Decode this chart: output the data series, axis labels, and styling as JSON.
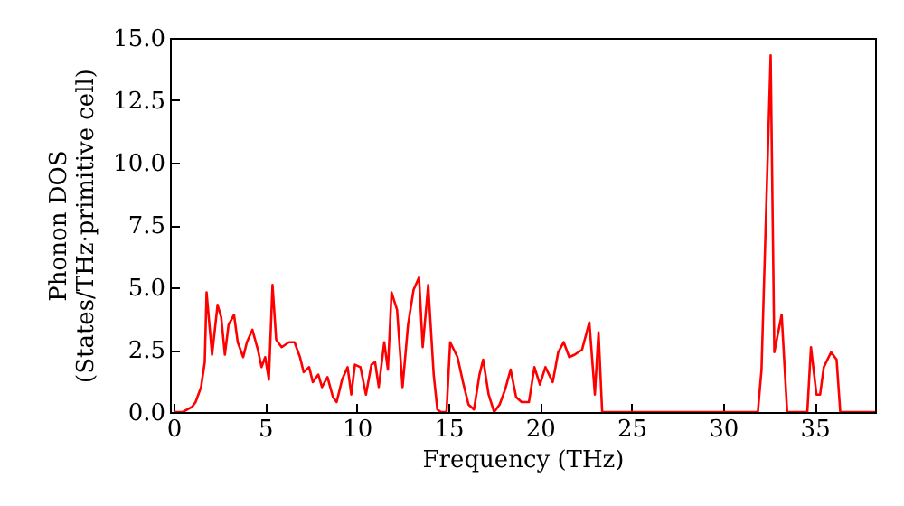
{
  "chart_data": {
    "type": "line",
    "xlabel": "Frequency (THz)",
    "ylabel": [
      "Phonon DOS",
      "(States/THz·primitive cell)"
    ],
    "xlim": [
      -0.2,
      38.3
    ],
    "ylim": [
      0,
      15
    ],
    "xticks": [
      0,
      5,
      10,
      15,
      20,
      25,
      30,
      35
    ],
    "yticks": [
      {
        "value": 0,
        "label": "0.0"
      },
      {
        "value": 2.5,
        "label": "2.5"
      },
      {
        "value": 5,
        "label": "5.0"
      },
      {
        "value": 7.5,
        "label": "7.5"
      },
      {
        "value": 10,
        "label": "10.0"
      },
      {
        "value": 12.5,
        "label": "12.5"
      },
      {
        "value": 15,
        "label": "15.0"
      }
    ],
    "grid": false,
    "line_style": "solid",
    "series": [
      {
        "color": "#ff0000",
        "x": [
          0,
          0.5,
          1.0,
          1.2,
          1.5,
          1.7,
          1.8,
          2.1,
          2.4,
          2.6,
          2.8,
          3.0,
          3.3,
          3.5,
          3.8,
          4.0,
          4.3,
          4.6,
          4.8,
          5.0,
          5.2,
          5.4,
          5.6,
          5.9,
          6.3,
          6.6,
          6.9,
          7.1,
          7.4,
          7.6,
          7.9,
          8.1,
          8.4,
          8.7,
          8.9,
          9.2,
          9.5,
          9.7,
          9.9,
          10.2,
          10.5,
          10.8,
          11.0,
          11.2,
          11.5,
          11.7,
          11.9,
          12.2,
          12.5,
          12.8,
          13.1,
          13.4,
          13.6,
          13.9,
          14.2,
          14.4,
          14.6,
          14.9,
          15.1,
          15.5,
          15.8,
          16.1,
          16.4,
          16.7,
          16.9,
          17.2,
          17.5,
          17.8,
          18.1,
          18.4,
          18.7,
          19.0,
          19.4,
          19.7,
          20.0,
          20.3,
          20.7,
          21.0,
          21.3,
          21.6,
          21.9,
          22.3,
          22.7,
          23.0,
          23.2,
          23.4,
          31.9,
          32.1,
          32.6,
          32.8,
          33.2,
          33.5,
          34.6,
          34.8,
          35.1,
          35.3,
          35.5,
          35.9,
          36.2,
          36.4,
          38.3
        ],
        "values": [
          0,
          0,
          0.2,
          0.4,
          1.0,
          2.0,
          4.8,
          2.3,
          4.3,
          3.8,
          2.3,
          3.5,
          3.9,
          2.8,
          2.2,
          2.8,
          3.3,
          2.5,
          1.8,
          2.2,
          1.3,
          5.1,
          2.9,
          2.6,
          2.8,
          2.8,
          2.2,
          1.6,
          1.8,
          1.2,
          1.5,
          1.0,
          1.4,
          0.6,
          0.4,
          1.3,
          1.8,
          0.7,
          1.9,
          1.8,
          0.7,
          1.9,
          2.0,
          1.0,
          2.8,
          1.7,
          4.8,
          4.1,
          1.0,
          3.5,
          4.9,
          5.4,
          2.6,
          5.1,
          1.5,
          0.1,
          0,
          0,
          2.8,
          2.2,
          1.2,
          0.3,
          0.1,
          1.5,
          2.1,
          0.7,
          0,
          0.3,
          0.9,
          1.7,
          0.6,
          0.4,
          0.4,
          1.8,
          1.1,
          1.8,
          1.2,
          2.4,
          2.8,
          2.2,
          2.3,
          2.5,
          3.6,
          0.7,
          3.2,
          0,
          0,
          1.7,
          14.3,
          2.4,
          3.9,
          0,
          0,
          2.6,
          0.7,
          0.7,
          1.8,
          2.4,
          2.1,
          0,
          0
        ]
      }
    ]
  }
}
